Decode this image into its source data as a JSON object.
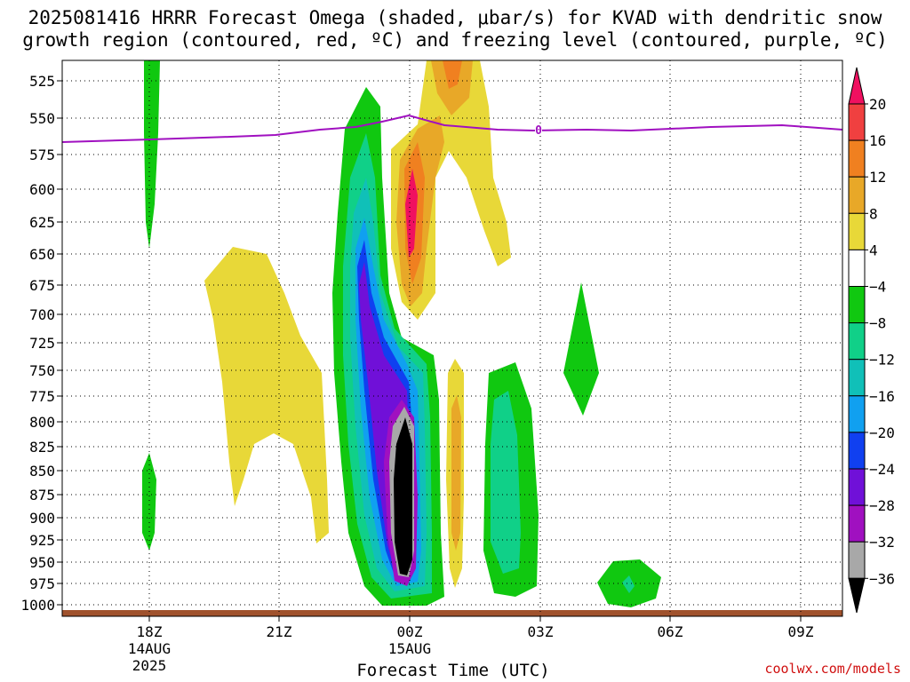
{
  "chart_data": {
    "type": "heatmap",
    "title_line1": "2025081416 HRRR Forecast Omega (shaded, μbar/s) for KVAD with dendritic snow",
    "title_line2": "growth region (contoured, red, ºC) and freezing level (contoured, purple, ºC)",
    "xlabel": "Forecast Time (UTC)",
    "y_ticks": [
      525,
      550,
      575,
      600,
      625,
      650,
      675,
      700,
      725,
      750,
      775,
      800,
      825,
      850,
      875,
      900,
      925,
      950,
      975,
      1000
    ],
    "x_ticks": [
      {
        "label": "18Z",
        "sub1": "14AUG",
        "sub2": "2025"
      },
      {
        "label": "21Z",
        "sub1": "",
        "sub2": ""
      },
      {
        "label": "00Z",
        "sub1": "15AUG",
        "sub2": ""
      },
      {
        "label": "03Z",
        "sub1": "",
        "sub2": ""
      },
      {
        "label": "06Z",
        "sub1": "",
        "sub2": ""
      },
      {
        "label": "09Z",
        "sub1": "",
        "sub2": ""
      }
    ],
    "colorbar": {
      "levels": [
        "20",
        "16",
        "12",
        "8",
        "4",
        "−4",
        "−8",
        "−12",
        "−16",
        "−20",
        "−24",
        "−28",
        "−32",
        "−36"
      ],
      "colors": [
        "#f01060",
        "#f04040",
        "#f08020",
        "#e8a828",
        "#e8d838",
        "#ffffff",
        "#10c810",
        "#10d088",
        "#10c0b8",
        "#10a0f0",
        "#1040f0",
        "#7010d8",
        "#a010c0",
        "#a8a8a8",
        "#000000"
      ]
    },
    "freezing_level_label": "0",
    "colors": {
      "freezing_line": "#a010c0",
      "ground": "#a0522d"
    }
  },
  "credit": "coolwx.com/models"
}
